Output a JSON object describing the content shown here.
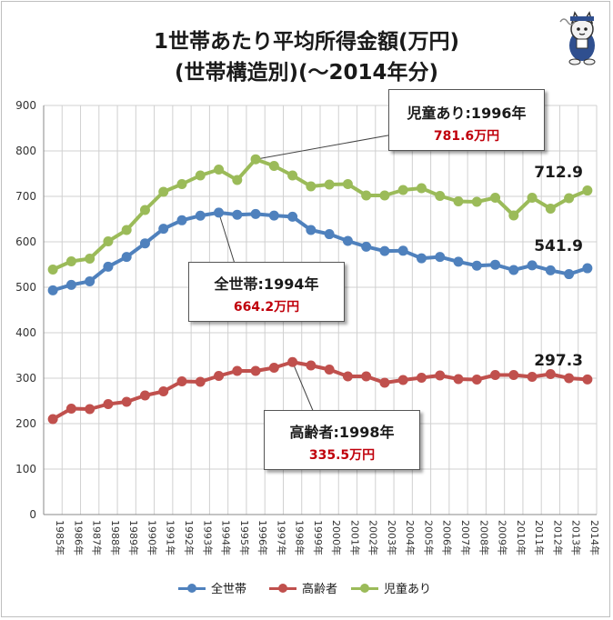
{
  "chart_data": {
    "type": "line",
    "title": "1世帯あたり平均所得金額(万円)",
    "subtitle": "(世帯構造別)(～2014年分)",
    "categories": [
      "1985年",
      "1986年",
      "1987年",
      "1988年",
      "1989年",
      "1990年",
      "1991年",
      "1992年",
      "1993年",
      "1994年",
      "1995年",
      "1996年",
      "1997年",
      "1998年",
      "1999年",
      "2000年",
      "2001年",
      "2002年",
      "2003年",
      "2004年",
      "2005年",
      "2006年",
      "2007年",
      "2008年",
      "2009年",
      "2010年",
      "2011年",
      "2012年",
      "2013年",
      "2014年"
    ],
    "ylim": [
      0,
      900
    ],
    "yticks": [
      0,
      100,
      200,
      300,
      400,
      500,
      600,
      700,
      800,
      900
    ],
    "grid": true,
    "legend_position": "bottom",
    "series": [
      {
        "name": "全世帯",
        "color": "#4f81bd",
        "values": [
          493.3,
          505.3,
          513.1,
          545.3,
          566.7,
          596.6,
          628.7,
          647.4,
          657.5,
          664.2,
          659.6,
          661.2,
          657.7,
          655.2,
          626.0,
          616.9,
          602.0,
          589.3,
          579.7,
          580.4,
          563.8,
          566.8,
          556.2,
          547.5,
          549.6,
          538.0,
          548.2,
          537.2,
          528.9,
          541.9
        ]
      },
      {
        "name": "高齢者",
        "color": "#c0504d",
        "values": [
          210.0,
          233.0,
          232.0,
          243.0,
          248.0,
          262.0,
          271.0,
          293.0,
          292.0,
          305.0,
          316.0,
          316.0,
          323.0,
          335.5,
          328.0,
          319.0,
          304.0,
          304.0,
          290.0,
          296.0,
          301.0,
          306.0,
          298.0,
          297.0,
          307.0,
          307.0,
          303.0,
          309.0,
          300.0,
          297.3
        ]
      },
      {
        "name": "児童あり",
        "color": "#9bbb59",
        "values": [
          539.0,
          557.0,
          563.0,
          601.0,
          626.0,
          670.0,
          710.0,
          727.0,
          746.0,
          759.0,
          736.0,
          781.6,
          767.0,
          746.0,
          722.0,
          726.0,
          727.0,
          702.0,
          702.0,
          714.0,
          718.0,
          701.0,
          689.0,
          688.0,
          697.0,
          658.0,
          697.0,
          673.0,
          696.0,
          712.9
        ]
      }
    ],
    "end_labels": {
      "all": "541.9",
      "elderly": "297.3",
      "children": "712.9"
    },
    "annotations": [
      {
        "name": "児童あり:1996年",
        "value": "781.6万円",
        "series": "児童あり",
        "category": "1996年"
      },
      {
        "name": "全世帯:1994年",
        "value": "664.2万円",
        "series": "全世帯",
        "category": "1994年"
      },
      {
        "name": "高齢者:1998年",
        "value": "335.5万円",
        "series": "高齢者",
        "category": "1998年"
      }
    ]
  },
  "mascot_icon": "cat-mascot-icon"
}
